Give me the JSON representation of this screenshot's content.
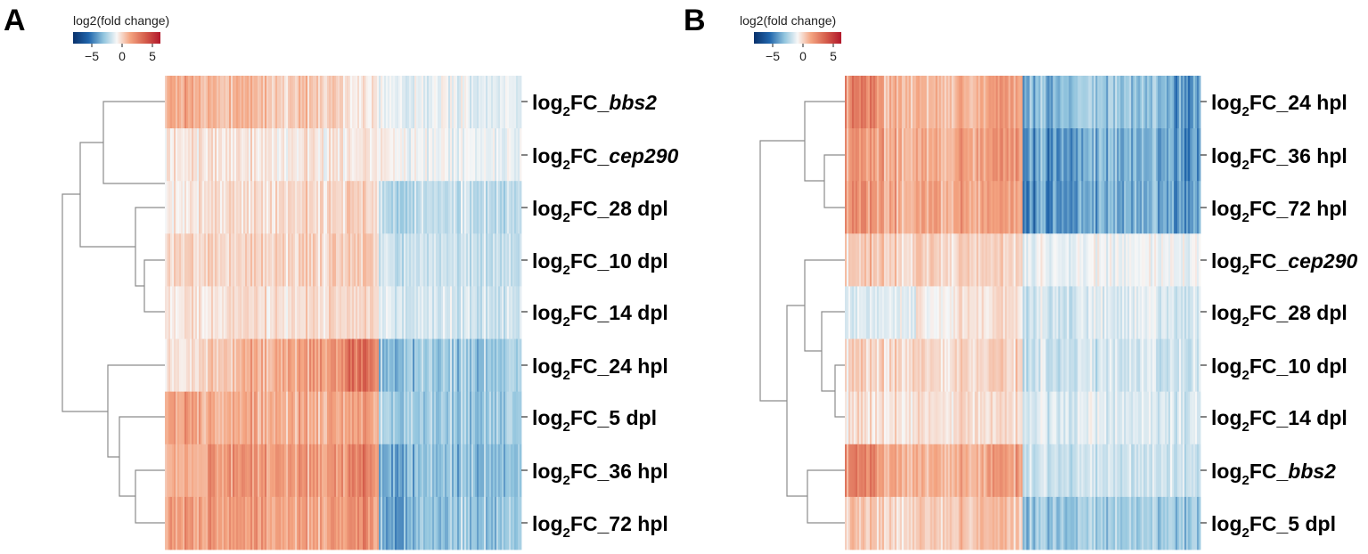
{
  "colorscale": {
    "negative": "#08306b",
    "mid": "#f7f7f7",
    "positive": "#b2182b"
  },
  "chart_data": [
    {
      "panel_label": "A",
      "type": "heatmap",
      "colorbar": {
        "title": "log2(fold change)",
        "range": [
          -8,
          8
        ],
        "ticks": [
          -5,
          0,
          5
        ],
        "tick_labels": [
          "−5",
          "0",
          "5"
        ]
      },
      "row_prefix": "log",
      "row_subscript": "2",
      "rows": [
        {
          "suffix": "FC_",
          "label_part": "bbs2",
          "italic": true,
          "profile": [
            2.2,
            1.6,
            1.6,
            1.2,
            1.2,
            0.4,
            -0.3,
            -0.3,
            -0.3,
            -0.2
          ]
        },
        {
          "suffix": "FC_",
          "label_part": "cep290",
          "italic": true,
          "profile": [
            0.6,
            0.5,
            0.5,
            0.4,
            0.4,
            0.3,
            0.0,
            -0.1,
            -0.1,
            -0.1
          ]
        },
        {
          "suffix": "FC_",
          "label_part": "28 dpl",
          "italic": false,
          "profile": [
            0.4,
            0.6,
            0.6,
            0.8,
            0.8,
            0.9,
            -1.3,
            -1.1,
            -1.0,
            -1.1
          ]
        },
        {
          "suffix": "FC_",
          "label_part": "10 dpl",
          "italic": false,
          "profile": [
            0.9,
            0.9,
            0.9,
            1.0,
            1.0,
            1.1,
            -0.9,
            -1.0,
            -1.0,
            -1.0
          ]
        },
        {
          "suffix": "FC_",
          "label_part": "14 dpl",
          "italic": false,
          "profile": [
            0.6,
            0.6,
            0.6,
            0.7,
            0.8,
            0.8,
            -0.6,
            -0.8,
            -0.8,
            -0.7
          ]
        },
        {
          "suffix": "FC_",
          "label_part": "24 hpl",
          "italic": false,
          "profile": [
            0.5,
            1.2,
            1.8,
            2.2,
            2.6,
            3.4,
            -2.2,
            -1.9,
            -1.8,
            -1.6
          ]
        },
        {
          "suffix": "FC_",
          "label_part": "5 dpl",
          "italic": false,
          "profile": [
            2.4,
            2.0,
            2.0,
            2.0,
            2.0,
            2.1,
            -1.7,
            -1.9,
            -1.8,
            -1.6
          ]
        },
        {
          "suffix": "FC_",
          "label_part": "36 hpl",
          "italic": false,
          "profile": [
            1.9,
            2.6,
            2.6,
            2.6,
            2.6,
            2.8,
            -2.5,
            -2.2,
            -2.1,
            -2.0
          ]
        },
        {
          "suffix": "FC_",
          "label_part": "72 hpl",
          "italic": false,
          "profile": [
            2.6,
            2.4,
            2.4,
            2.3,
            2.3,
            2.5,
            -2.7,
            -2.2,
            -2.0,
            -1.9
          ]
        }
      ],
      "dendrogram_leaf_order": [
        "bbs2",
        "cep290",
        "28 dpl",
        "10 dpl",
        "14 dpl",
        "24 hpl",
        "5 dpl",
        "36 hpl",
        "72 hpl"
      ]
    },
    {
      "panel_label": "B",
      "type": "heatmap",
      "colorbar": {
        "title": "log2(fold change)",
        "range": [
          -8,
          8
        ],
        "ticks": [
          -5,
          0,
          5
        ],
        "tick_labels": [
          "−5",
          "0",
          "5"
        ]
      },
      "row_prefix": "log",
      "row_subscript": "2",
      "rows": [
        {
          "suffix": "FC_",
          "label_part": "24 hpl",
          "italic": false,
          "profile": [
            3.0,
            1.8,
            1.7,
            1.8,
            2.4,
            -2.6,
            -2.0,
            -2.0,
            -2.1,
            -2.9
          ]
        },
        {
          "suffix": "FC_",
          "label_part": "36 hpl",
          "italic": false,
          "profile": [
            2.4,
            2.0,
            2.0,
            2.2,
            2.5,
            -3.2,
            -3.0,
            -2.6,
            -2.6,
            -3.0
          ]
        },
        {
          "suffix": "FC_",
          "label_part": "72 hpl",
          "italic": false,
          "profile": [
            2.6,
            2.0,
            2.1,
            2.2,
            2.3,
            -3.4,
            -3.0,
            -2.7,
            -2.6,
            -3.0
          ]
        },
        {
          "suffix": "FC_",
          "label_part": "cep290",
          "italic": true,
          "profile": [
            1.2,
            1.0,
            1.0,
            1.0,
            1.0,
            -0.2,
            -0.2,
            -0.1,
            -0.1,
            -0.2
          ]
        },
        {
          "suffix": "FC_",
          "label_part": "28 dpl",
          "italic": false,
          "profile": [
            -0.6,
            -0.4,
            0.2,
            0.4,
            0.6,
            -0.8,
            -0.7,
            -0.6,
            -0.5,
            -0.6
          ]
        },
        {
          "suffix": "FC_",
          "label_part": "10 dpl",
          "italic": false,
          "profile": [
            0.9,
            0.8,
            0.8,
            0.9,
            1.0,
            -0.9,
            -0.9,
            -0.9,
            -0.8,
            -0.8
          ]
        },
        {
          "suffix": "FC_",
          "label_part": "14 dpl",
          "italic": false,
          "profile": [
            0.6,
            0.6,
            0.6,
            0.6,
            0.7,
            -0.6,
            -0.6,
            -0.6,
            -0.5,
            -0.6
          ]
        },
        {
          "suffix": "FC_",
          "label_part": "bbs2",
          "italic": true,
          "profile": [
            3.0,
            2.0,
            1.8,
            1.9,
            2.4,
            -1.0,
            -0.9,
            -0.9,
            -0.8,
            -0.9
          ]
        },
        {
          "suffix": "FC_",
          "label_part": "5 dpl",
          "italic": false,
          "profile": [
            1.2,
            0.8,
            1.2,
            1.4,
            1.4,
            -2.0,
            -2.0,
            -1.9,
            -1.7,
            -1.8
          ]
        }
      ],
      "dendrogram_leaf_order": [
        "24 hpl",
        "36 hpl",
        "72 hpl",
        "cep290",
        "28 dpl",
        "10 dpl",
        "14 dpl",
        "bbs2",
        "5 dpl"
      ]
    }
  ]
}
